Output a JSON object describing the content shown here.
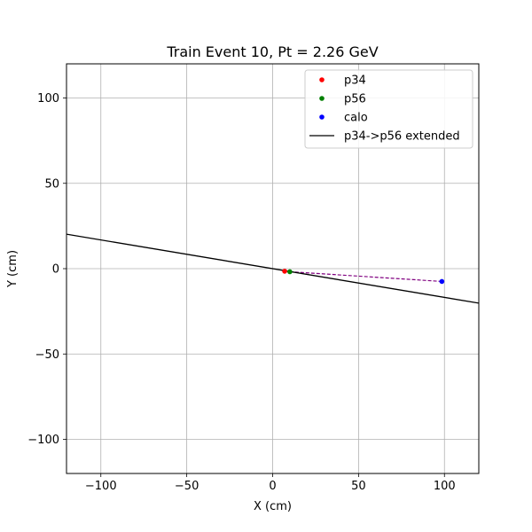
{
  "chart_data": {
    "type": "scatter",
    "title": "Train Event 10, Pt = 2.26 GeV",
    "xlabel": "X (cm)",
    "ylabel": "Y (cm)",
    "xlim": [
      -120,
      120
    ],
    "ylim": [
      -120,
      120
    ],
    "xticks": [
      -100,
      -50,
      0,
      50,
      100
    ],
    "yticks": [
      -100,
      -50,
      0,
      50,
      100
    ],
    "xtick_labels": [
      "−100",
      "−50",
      "0",
      "50",
      "100"
    ],
    "ytick_labels": [
      "−100",
      "−50",
      "0",
      "50",
      "100"
    ],
    "grid": true,
    "legend_position": "top-right",
    "series": [
      {
        "name": "p34",
        "kind": "point",
        "color": "#ff0000",
        "points": [
          [
            7,
            -1.5
          ]
        ]
      },
      {
        "name": "p56",
        "kind": "point",
        "color": "#008000",
        "points": [
          [
            10,
            -1.8
          ]
        ]
      },
      {
        "name": "calo",
        "kind": "point",
        "color": "#0000ff",
        "points": [
          [
            98.5,
            -7.5
          ]
        ]
      },
      {
        "name": "p34->p56 extended",
        "kind": "line",
        "color": "#000000",
        "points": [
          [
            -120,
            20.2
          ],
          [
            120,
            -20.2
          ]
        ]
      }
    ],
    "annotations": [
      {
        "kind": "dashed-line",
        "color": "#800080",
        "points": [
          [
            10,
            -1.8
          ],
          [
            98.5,
            -7.5
          ]
        ]
      }
    ]
  }
}
